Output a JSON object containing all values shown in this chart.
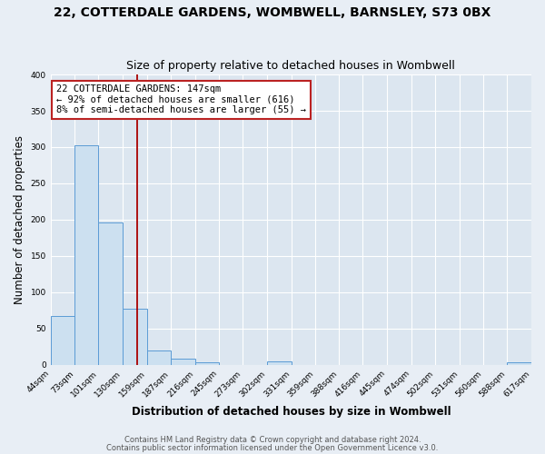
{
  "title": "22, COTTERDALE GARDENS, WOMBWELL, BARNSLEY, S73 0BX",
  "subtitle": "Size of property relative to detached houses in Wombwell",
  "xlabel": "Distribution of detached houses by size in Wombwell",
  "ylabel": "Number of detached properties",
  "bin_edges": [
    44,
    73,
    101,
    130,
    159,
    187,
    216,
    245,
    273,
    302,
    331,
    359,
    388,
    416,
    445,
    474,
    502,
    531,
    560,
    588,
    617
  ],
  "bin_counts": [
    67,
    303,
    196,
    77,
    20,
    9,
    4,
    0,
    0,
    5,
    0,
    0,
    0,
    0,
    0,
    0,
    0,
    0,
    0,
    3
  ],
  "bar_color": "#cce0f0",
  "bar_edge_color": "#5b9bd5",
  "property_size": 147,
  "vline_color": "#aa0000",
  "annotation_line1": "22 COTTERDALE GARDENS: 147sqm",
  "annotation_line2": "← 92% of detached houses are smaller (616)",
  "annotation_line3": "8% of semi-detached houses are larger (55) →",
  "annotation_box_color": "#ffffff",
  "annotation_box_edge_color": "#bb2222",
  "ylim": [
    0,
    400
  ],
  "yticks": [
    0,
    50,
    100,
    150,
    200,
    250,
    300,
    350,
    400
  ],
  "fig_background_color": "#e8eef5",
  "plot_background_color": "#dce6f0",
  "grid_color": "#ffffff",
  "footer_line1": "Contains HM Land Registry data © Crown copyright and database right 2024.",
  "footer_line2": "Contains public sector information licensed under the Open Government Licence v3.0.",
  "title_fontsize": 10,
  "subtitle_fontsize": 9,
  "tick_label_fontsize": 6.5,
  "axis_label_fontsize": 8.5,
  "annotation_fontsize": 7.5,
  "footer_fontsize": 6
}
